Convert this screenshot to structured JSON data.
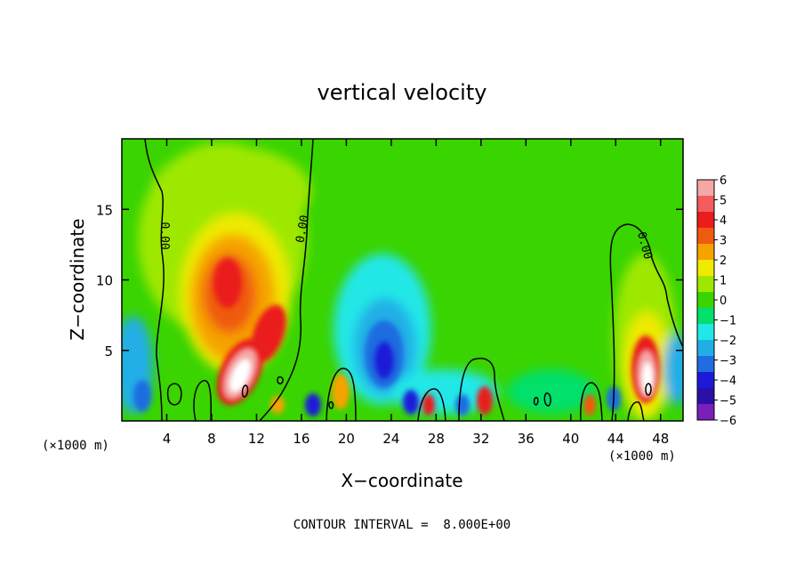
{
  "chart_data": {
    "type": "heatmap",
    "title": "vertical velocity",
    "xlabel": "X−coordinate",
    "ylabel": "Z−coordinate",
    "x_unit_left": "(×1000 m)",
    "x_unit_right": "(×1000 m)",
    "xlim": [
      0,
      50
    ],
    "ylim": [
      0,
      20
    ],
    "x_ticks": [
      4,
      8,
      12,
      16,
      20,
      24,
      28,
      32,
      36,
      40,
      44,
      48
    ],
    "y_ticks": [
      5,
      10,
      15
    ],
    "colorbar": {
      "min": -6,
      "max": 6,
      "labels": [
        "6",
        "5",
        "4",
        "3",
        "2",
        "1",
        "0",
        "−1",
        "−2",
        "−3",
        "−4",
        "−5",
        "−6"
      ],
      "colors": [
        "#f5a7a7",
        "#f25c5c",
        "#ea1c1c",
        "#f05a10",
        "#f6a300",
        "#eeea00",
        "#9ee800",
        "#3ad400",
        "#00e06a",
        "#21e7e7",
        "#21aee7",
        "#1f6de0",
        "#1c1ad8",
        "#2a0fa8",
        "#7a1fb8"
      ]
    },
    "contour_label": "0.00",
    "contour_interval_text": "CONTOUR INTERVAL =  8.000E+00",
    "features": [
      {
        "x": 10.5,
        "z": 3.0,
        "w": 5.5
      },
      {
        "x": 13.5,
        "z": 6.0,
        "w": 4.0
      },
      {
        "x": 9.5,
        "z": 10.0,
        "w": 3.5
      },
      {
        "x": 46.5,
        "z": 3.5,
        "w": 5.5
      },
      {
        "x": 23.5,
        "z": 5.0,
        "w": -5.0
      },
      {
        "x": 26.0,
        "z": 1.5,
        "w": -4.5
      },
      {
        "x": 32.5,
        "z": 1.5,
        "w": 3.5
      },
      {
        "x": 27.5,
        "z": 1.0,
        "w": 3.0
      },
      {
        "x": 17.5,
        "z": 1.0,
        "w": -4.0
      },
      {
        "x": 41.5,
        "z": 1.5,
        "w": 3.0
      }
    ]
  }
}
